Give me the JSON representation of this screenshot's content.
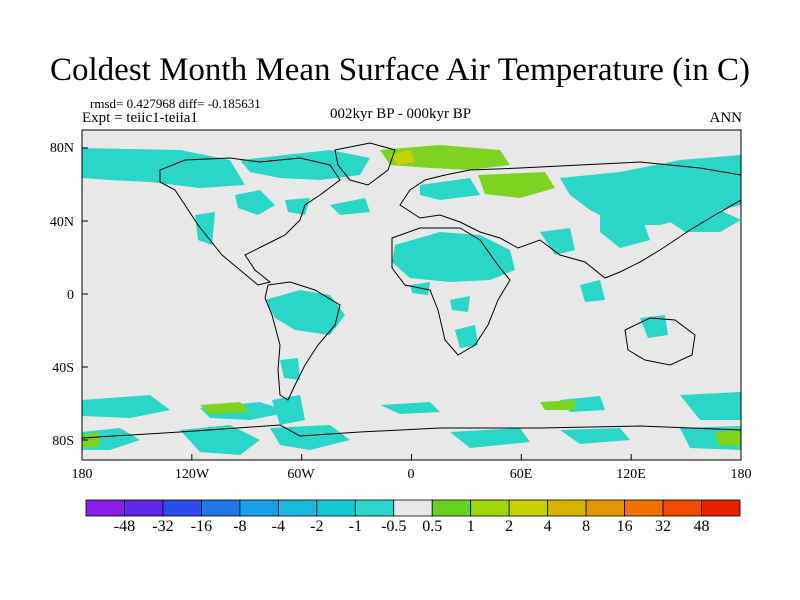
{
  "title": "Coldest Month Mean Surface Air Temperature (in C)",
  "stats": "rmsd= 0.427968 diff= -0.185631",
  "expt": "Expt = teiic1-teiia1",
  "subtitle": "002kyr BP - 000kyr BP",
  "season": "ANN",
  "colors": {
    "background": "#e8e8e8",
    "coast": "#000000",
    "cyan": "#29d6c8",
    "green": "#7ed321",
    "yellow": "#c8d200"
  },
  "map": {
    "lon_range": [
      -180,
      180
    ],
    "lat_range": [
      -90,
      90
    ]
  },
  "axes": {
    "y_ticks": [
      "80N",
      "40N",
      "0",
      "40S",
      "80S"
    ],
    "x_ticks": [
      "180",
      "120W",
      "60W",
      "0",
      "60E",
      "120E",
      "180"
    ]
  },
  "colorbar": {
    "colors": [
      "#8a1ee6",
      "#5a28e6",
      "#2a4be8",
      "#1e78e8",
      "#17a0e8",
      "#1ab7dc",
      "#19c8d6",
      "#29d6c8",
      "#e8e8e8",
      "#66d21e",
      "#a0d80a",
      "#c8d200",
      "#d6b400",
      "#e69600",
      "#f07000",
      "#f04a00",
      "#e81e00"
    ],
    "labels": [
      "-48",
      "-32",
      "-16",
      "-8",
      "-4",
      "-2",
      "-1",
      "-0.5",
      "0.5",
      "1",
      "2",
      "4",
      "8",
      "16",
      "32",
      "48"
    ]
  }
}
